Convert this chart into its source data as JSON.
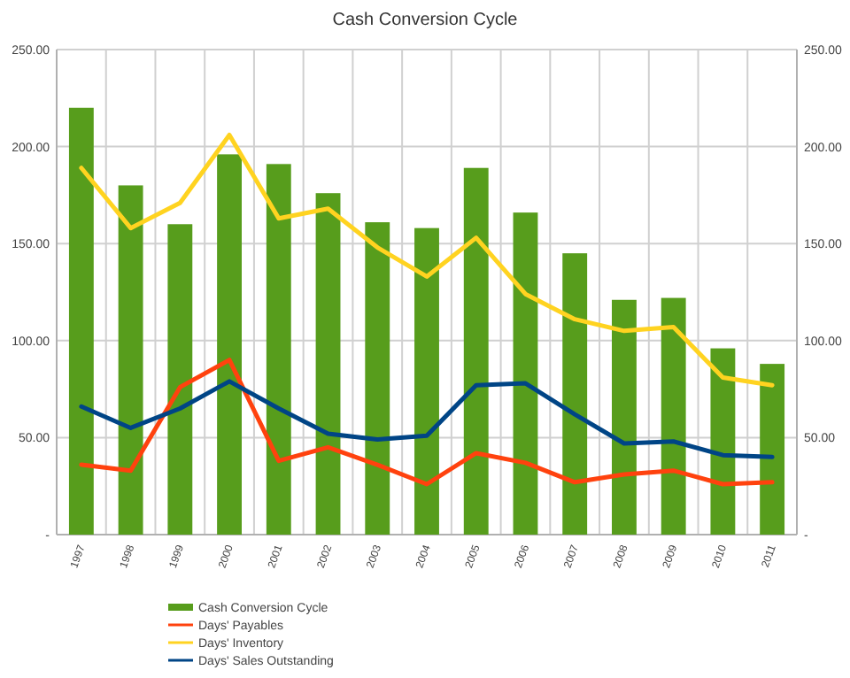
{
  "chart_data": {
    "type": "bar",
    "title": "Cash Conversion Cycle",
    "categories": [
      "1997",
      "1998",
      "1999",
      "2000",
      "2001",
      "2002",
      "2003",
      "2004",
      "2005",
      "2006",
      "2007",
      "2008",
      "2009",
      "2010",
      "2011"
    ],
    "series": [
      {
        "name": "Cash Conversion Cycle",
        "color": "#579d1c",
        "values": [
          220,
          180,
          160,
          196,
          191,
          176,
          161,
          158,
          189,
          166,
          145,
          121,
          122,
          96,
          88
        ]
      },
      {
        "name": "Days' Payables",
        "type": "line",
        "color": "#ff420e",
        "values": [
          36,
          33,
          76,
          90,
          38,
          45,
          36,
          26,
          42,
          37,
          27,
          31,
          33,
          26,
          27
        ]
      },
      {
        "name": "Days' Inventory",
        "type": "line",
        "color": "#ffd320",
        "values": [
          189,
          158,
          171,
          206,
          163,
          168,
          148,
          133,
          153,
          124,
          111,
          105,
          107,
          81,
          77
        ]
      },
      {
        "name": "Days' Sales Outstanding",
        "type": "line",
        "color": "#004586",
        "values": [
          66,
          55,
          65,
          79,
          65,
          52,
          49,
          51,
          77,
          78,
          62,
          47,
          48,
          41,
          40
        ]
      }
    ],
    "ylim": [
      0,
      250
    ],
    "yticks": [
      {
        "value": 0,
        "label": "-"
      },
      {
        "value": 50,
        "label": "50.00"
      },
      {
        "value": 100,
        "label": "100.00"
      },
      {
        "value": 150,
        "label": "150.00"
      },
      {
        "value": 200,
        "label": "200.00"
      },
      {
        "value": 250,
        "label": "250.00"
      }
    ],
    "y2lim": [
      0,
      250
    ],
    "y2ticks": [
      {
        "value": 0,
        "label": "-"
      },
      {
        "value": 50,
        "label": "50.00"
      },
      {
        "value": 100,
        "label": "100.00"
      },
      {
        "value": 150,
        "label": "150.00"
      },
      {
        "value": 200,
        "label": "200.00"
      },
      {
        "value": 250,
        "label": "250.00"
      }
    ],
    "grid": true,
    "legend": "bottom left",
    "line_style": "solid",
    "marker": "none"
  }
}
